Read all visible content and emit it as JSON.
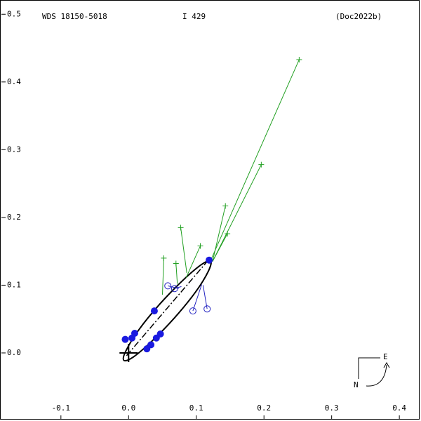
{
  "chart_data": {
    "type": "orbit",
    "title": "WDS 18150-5018",
    "code": "I   429",
    "reference": "(Doc2022b)",
    "compass": {
      "east": "E",
      "north": "N"
    },
    "xlim": [
      -0.19,
      0.432
    ],
    "ylim": [
      -0.1005,
      0.521
    ],
    "xticks": [
      -0.1,
      {
        "value": 0,
        "label": "0.0"
      },
      0.1,
      0.2,
      0.3,
      0.4
    ],
    "yticks": [
      {
        "value": 0,
        "label": "0.0"
      },
      0.1,
      0.2,
      0.3,
      0.4,
      0.5
    ],
    "primary": {
      "x": 0,
      "y": 0
    },
    "orbit": {
      "color": "#000000",
      "x": [
        0.121,
        0.118,
        0.099,
        0.068,
        0.034,
        0.007,
        -0.007,
        -0.004,
        0.015,
        0.046,
        0.08,
        0.107
      ],
      "y": [
        0.136,
        0.121,
        0.09,
        0.052,
        0.017,
        -0.006,
        -0.011,
        0.003,
        0.034,
        0.072,
        0.107,
        0.13
      ]
    },
    "line_of_nodes": {
      "color": "#000000",
      "x": [
        -0.003,
        0.117
      ],
      "y": [
        -0.004,
        0.136
      ]
    },
    "micrometer": {
      "color": "#22a022",
      "x": [
        0.252,
        0.196,
        0.143,
        0.146,
        0.106,
        0.077,
        0.07,
        0.052
      ],
      "y": [
        0.433,
        0.278,
        0.217,
        0.176,
        0.158,
        0.185,
        0.132,
        0.14
      ],
      "fit_x": [
        0.121,
        0.124,
        0.124,
        0.124,
        0.085,
        0.086,
        0.072,
        0.05
      ],
      "fit_y": [
        0.136,
        0.135,
        0.135,
        0.135,
        0.111,
        0.118,
        0.102,
        0.086
      ]
    },
    "visual": {
      "color": "#2020c0",
      "x": [
        0.058,
        0.068,
        0.095,
        0.116
      ],
      "y": [
        0.099,
        0.095,
        0.062,
        0.065
      ],
      "fit_x": [
        0.074,
        0.078,
        0.108,
        0.11
      ],
      "fit_y": [
        0.095,
        0.098,
        0.101,
        0.1
      ]
    },
    "speckle": {
      "color": "#1a1ae0",
      "x": [
        0.119,
        0.038,
        0.009,
        0.005,
        -0.005,
        0.027,
        0.033,
        0.041,
        0.047
      ],
      "y": [
        0.137,
        0.062,
        0.029,
        0.022,
        0.02,
        0.006,
        0.012,
        0.022,
        0.028
      ]
    }
  }
}
